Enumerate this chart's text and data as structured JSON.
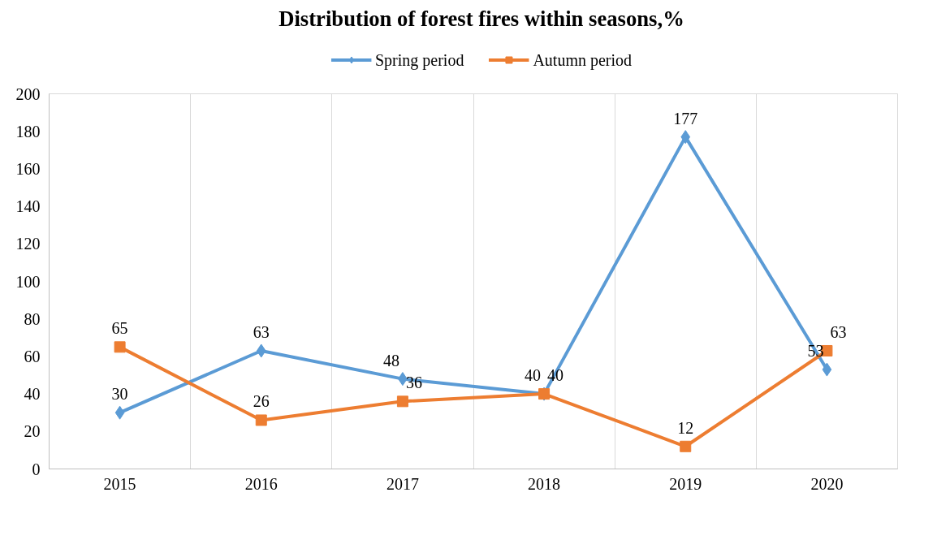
{
  "chart_data": {
    "type": "line",
    "title": "Distribution of forest fires within seasons,%",
    "categories": [
      "2015",
      "2016",
      "2017",
      "2018",
      "2019",
      "2020"
    ],
    "series": [
      {
        "name": "Spring period",
        "color": "#5b9bd5",
        "marker": "diamond",
        "values": [
          30,
          63,
          48,
          40,
          177,
          53
        ]
      },
      {
        "name": "Autumn period",
        "color": "#ed7d31",
        "marker": "square",
        "values": [
          65,
          26,
          36,
          40,
          12,
          63
        ]
      }
    ],
    "ylim": [
      0,
      200
    ],
    "yticks": [
      0,
      20,
      40,
      60,
      80,
      100,
      120,
      140,
      160,
      180,
      200
    ],
    "grid": "x",
    "legend": "top",
    "data_labels": true,
    "line_style": "solid"
  }
}
